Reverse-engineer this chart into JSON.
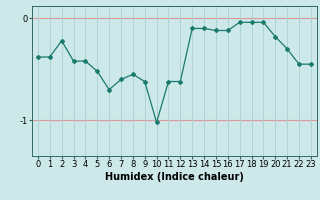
{
  "x": [
    0,
    1,
    2,
    3,
    4,
    5,
    6,
    7,
    8,
    9,
    10,
    11,
    12,
    13,
    14,
    15,
    16,
    17,
    18,
    19,
    20,
    21,
    22,
    23
  ],
  "y": [
    -0.38,
    -0.38,
    -0.22,
    -0.42,
    -0.42,
    -0.52,
    -0.7,
    -0.6,
    -0.55,
    -0.62,
    -1.02,
    -0.62,
    -0.62,
    -0.1,
    -0.1,
    -0.12,
    -0.12,
    -0.04,
    -0.04,
    -0.04,
    -0.18,
    -0.3,
    -0.45,
    -0.45
  ],
  "line_color": "#1a7a6e",
  "marker": "D",
  "markersize": 2.0,
  "linewidth": 0.9,
  "background_color": "#cce8e8",
  "grid_color": "#aad0d0",
  "xlabel": "Humidex (Indice chaleur)",
  "xlabel_fontsize": 7,
  "yticks": [
    0,
    -1
  ],
  "ytick_labels": [
    "0",
    "-1"
  ],
  "xticks": [
    0,
    1,
    2,
    3,
    4,
    5,
    6,
    7,
    8,
    9,
    10,
    11,
    12,
    13,
    14,
    15,
    16,
    17,
    18,
    19,
    20,
    21,
    22,
    23
  ],
  "ylim": [
    -1.35,
    0.12
  ],
  "xlim": [
    -0.5,
    23.5
  ],
  "tick_fontsize": 6,
  "hline_color": "#dd9999",
  "hline_y": -1,
  "hline_y2": 0,
  "spine_color": "#336666"
}
